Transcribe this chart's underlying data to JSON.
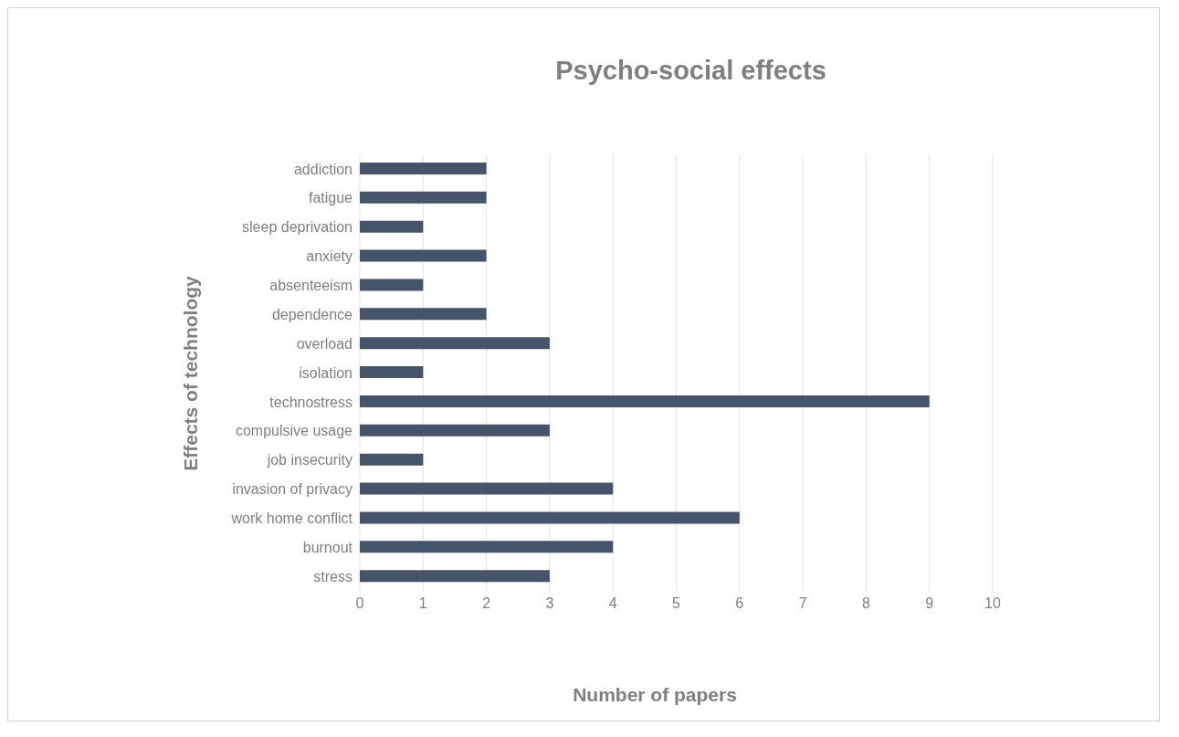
{
  "chart_data": {
    "type": "bar",
    "orientation": "horizontal",
    "title": "Psycho-social effects",
    "xlabel": "Number of papers",
    "ylabel": "Effects of technology",
    "categories": [
      "addiction",
      "fatigue",
      "sleep deprivation",
      "anxiety",
      "absenteeism",
      "dependence",
      "overload",
      "isolation",
      "technostress",
      "compulsive usage",
      "job insecurity",
      "invasion of privacy",
      "work home conflict",
      "burnout",
      "stress"
    ],
    "values": [
      2,
      2,
      1,
      2,
      1,
      2,
      3,
      1,
      9,
      3,
      1,
      4,
      6,
      4,
      3
    ],
    "color": "#44546a",
    "xlim": [
      0,
      10
    ],
    "xticks": [
      0,
      1,
      2,
      3,
      4,
      5,
      6,
      7,
      8,
      9,
      10
    ],
    "grid": "x"
  }
}
